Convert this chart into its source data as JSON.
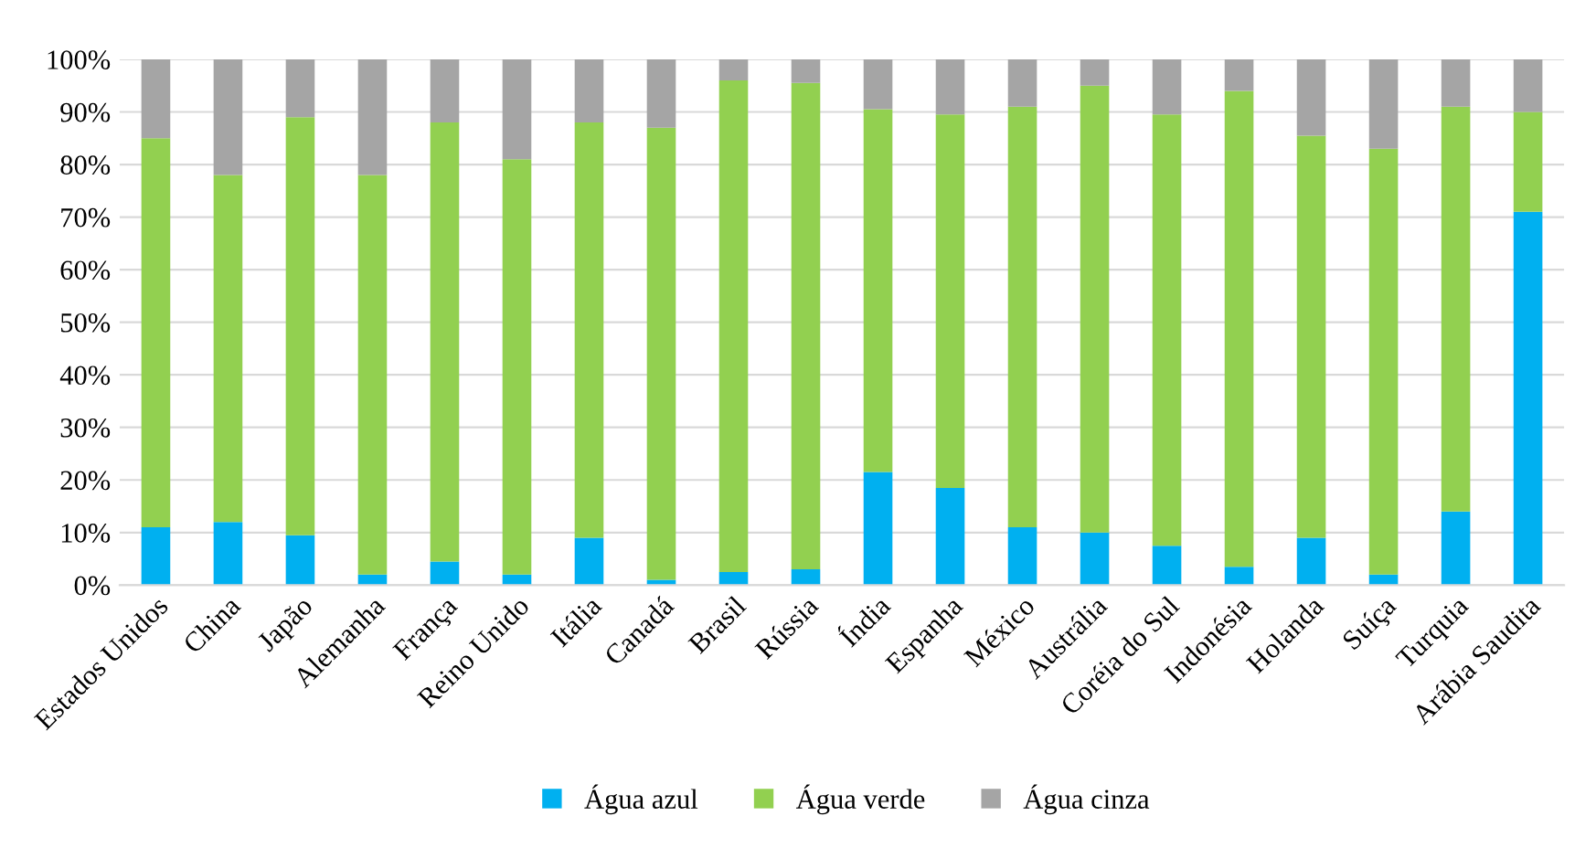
{
  "chart_data": {
    "type": "bar",
    "stacked": true,
    "categories": [
      "Estados Unidos",
      "China",
      "Japão",
      "Alemanha",
      "França",
      "Reino Unido",
      "Itália",
      "Canadá",
      "Brasil",
      "Rússia",
      "Índia",
      "Espanha",
      "México",
      "Austrália",
      "Coréia do Sul",
      "Indonésia",
      "Holanda",
      "Suíça",
      "Turquia",
      "Arábia Saudita"
    ],
    "series": [
      {
        "name": "Água azul",
        "color": "#00b0f0",
        "values": [
          11,
          12,
          9.5,
          2,
          4.5,
          2,
          9,
          1,
          2.5,
          3,
          21.5,
          18.5,
          11,
          10,
          7.5,
          3.5,
          9,
          2,
          14,
          71
        ]
      },
      {
        "name": "Água verde",
        "color": "#92d050",
        "values": [
          74,
          66,
          79.5,
          76,
          83.5,
          79,
          79,
          86,
          93.5,
          92.5,
          69,
          71,
          80,
          85,
          82,
          90.5,
          76.5,
          81,
          77,
          19
        ]
      },
      {
        "name": "Água cinza",
        "color": "#a5a5a5",
        "values": [
          15,
          22,
          11,
          22,
          12,
          19,
          12,
          13,
          4,
          4.5,
          9.5,
          10.5,
          9,
          5,
          10.5,
          6,
          14.5,
          17,
          9,
          10
        ]
      }
    ],
    "ylim": [
      0,
      100
    ],
    "yticks": [
      {
        "value": 0,
        "label": "0%"
      },
      {
        "value": 10,
        "label": "10%"
      },
      {
        "value": 20,
        "label": "20%"
      },
      {
        "value": 30,
        "label": "30%"
      },
      {
        "value": 40,
        "label": "40%"
      },
      {
        "value": 50,
        "label": "50%"
      },
      {
        "value": 60,
        "label": "60%"
      },
      {
        "value": 70,
        "label": "70%"
      },
      {
        "value": 80,
        "label": "80%"
      },
      {
        "value": 90,
        "label": "90%"
      },
      {
        "value": 100,
        "label": "100%"
      }
    ],
    "grid": "y",
    "legend": "bottom"
  }
}
